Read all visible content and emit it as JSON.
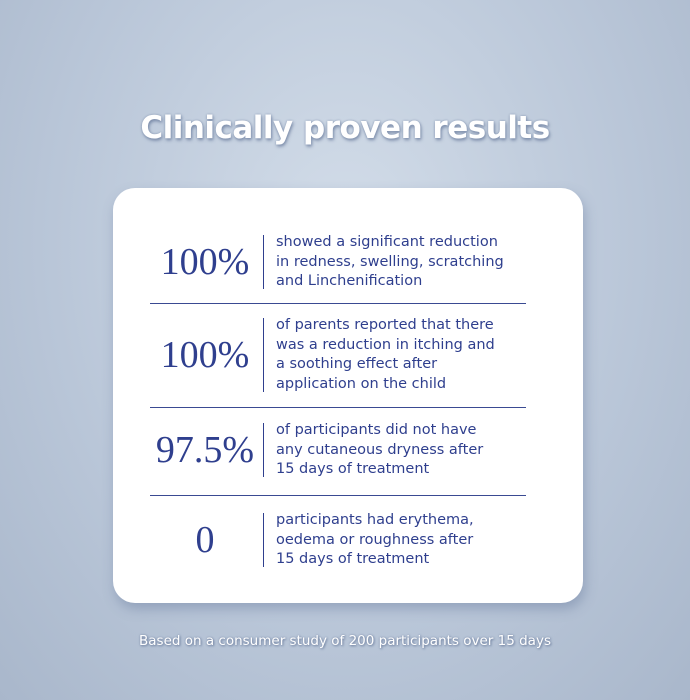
{
  "title": "Clinically proven results",
  "rows": [
    {
      "stat": "100%",
      "lines": [
        "showed a significant reduction",
        "in redness, swelling, scratching",
        "and Linchenification"
      ]
    },
    {
      "stat": "100%",
      "lines": [
        "of parents reported that there",
        "was a reduction in itching and",
        "a soothing effect after",
        "application on the child"
      ]
    },
    {
      "stat": "97.5%",
      "lines": [
        "of participants did not have",
        "any cutaneous dryness after",
        "15 days of treatment"
      ]
    },
    {
      "stat": "0",
      "lines": [
        "participants had erythema,",
        "oedema or roughness after",
        "15 days of treatment"
      ]
    }
  ],
  "footnote": "Based on a consumer study of 200 participants over 15 days"
}
